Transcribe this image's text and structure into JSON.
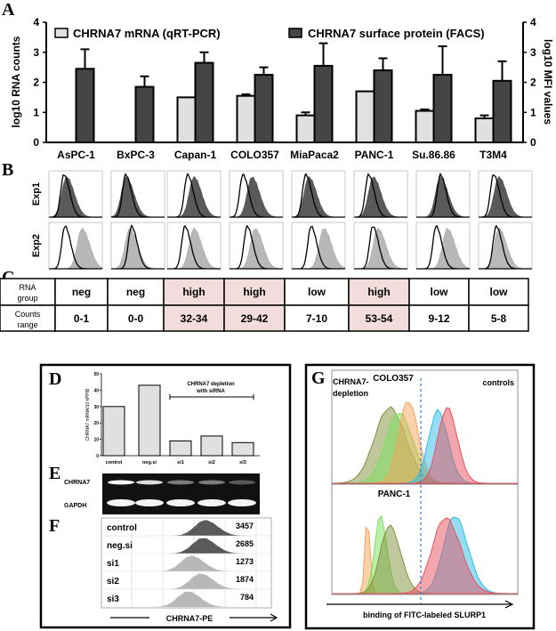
{
  "panel_labels": {
    "a": "A",
    "b": "B",
    "c": "C",
    "d": "D",
    "e": "E",
    "f": "F",
    "g": "G"
  },
  "colors": {
    "mrna_bar": "#e0e0e0",
    "facs_bar": "#454545",
    "table_high": "#f2dcdc",
    "flow_dark": "#5a5a5a",
    "flow_light": "#b8b8b8",
    "g_orange": "#f4a35a",
    "g_olive": "#7f8f3a",
    "g_green": "#7be05a",
    "g_cyan": "#2bbce8",
    "g_red": "#e8505b",
    "g_dash": "#3a7fd0"
  },
  "chart_data": [
    {
      "panel": "A",
      "type": "bar",
      "categories": [
        "AsPC-1",
        "BxPC-3",
        "Capan-1",
        "COLO357",
        "MiaPaca2",
        "PANC-1",
        "Su.86.86",
        "T3M4"
      ],
      "series": [
        {
          "name": "CHRNA7 mRNA (qRT-PCR)",
          "axis": "left",
          "values": [
            0,
            0,
            1.5,
            1.55,
            0.9,
            1.7,
            1.05,
            0.8
          ],
          "error_upper": [
            null,
            null,
            null,
            1.6,
            1.0,
            null,
            1.1,
            0.9
          ]
        },
        {
          "name": "CHRNA7 surface protein (FACS)",
          "axis": "right",
          "values": [
            2.45,
            1.85,
            2.65,
            2.25,
            2.55,
            2.4,
            2.25,
            2.05
          ],
          "error_upper": [
            3.1,
            2.2,
            3.0,
            2.5,
            3.3,
            2.8,
            3.2,
            2.7
          ]
        }
      ],
      "ylabel": "log10 RNA counts",
      "y2label": "log10 MFI values",
      "ylim": [
        0,
        4
      ],
      "yticks": [
        "0",
        "1",
        "2",
        "3",
        "4"
      ],
      "legend": "top",
      "grid": false
    },
    {
      "panel": "D",
      "type": "bar",
      "categories": [
        "control",
        "neg.si",
        "si1",
        "si2",
        "si3"
      ],
      "values": [
        30,
        43,
        9,
        12,
        8
      ],
      "ylabel": "CHRNA7 mRNA/10 kPPIB",
      "ylim": [
        0,
        50
      ],
      "yticks": [
        "0",
        "10",
        "20",
        "30",
        "40",
        "50"
      ],
      "annotation": [
        "CHRNA7 depletion",
        "with siRNA"
      ],
      "annotation_span": [
        "si1",
        "si3"
      ],
      "grid": false
    }
  ],
  "panel_b": {
    "rows": [
      "Exp1",
      "Exp2"
    ]
  },
  "table_c": {
    "row_headers": [
      [
        "RNA",
        "group"
      ],
      [
        "Counts",
        "range"
      ]
    ],
    "rna_group": [
      "neg",
      "neg",
      "high",
      "high",
      "low",
      "high",
      "low",
      "low"
    ],
    "counts_range": [
      "0-1",
      "0-0",
      "32-34",
      "29-42",
      "7-10",
      "53-54",
      "9-12",
      "5-8"
    ]
  },
  "panel_e": {
    "bands": [
      "CHRNA7",
      "GAPDH"
    ]
  },
  "panel_f": {
    "rows": [
      {
        "label": "control",
        "value": "3457"
      },
      {
        "label": "neg.si",
        "value": "2685"
      },
      {
        "label": "si1",
        "value": "1273"
      },
      {
        "label": "si2",
        "value": "1874"
      },
      {
        "label": "si3",
        "value": "784"
      }
    ],
    "axis_label": "CHRNA7-PE"
  },
  "panel_g": {
    "left_label": [
      "CHRNA7-",
      "depletion"
    ],
    "right_label": "controls",
    "top_title": "COLO357",
    "bottom_title": "PANC-1",
    "axis_label": "binding  of FITC-labeled SLURP1"
  }
}
